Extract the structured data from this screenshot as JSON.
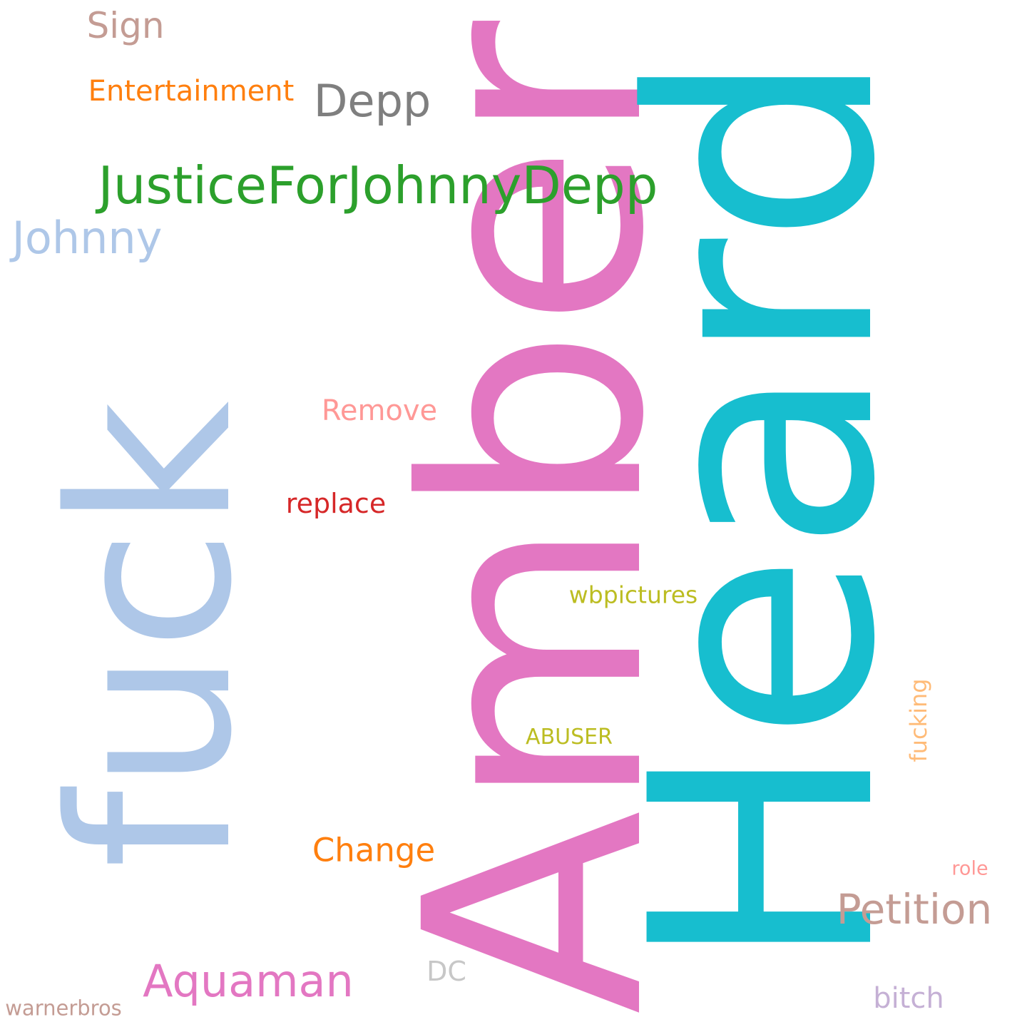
{
  "words": {
    "amber": {
      "text": "Amber",
      "color": "#e377c2"
    },
    "heard": {
      "text": "Heard",
      "color": "#17becf"
    },
    "fuck": {
      "text": "fuck",
      "color": "#aec7e8"
    },
    "justice": {
      "text": "JusticeForJohnnyDepp",
      "color": "#2ca02c"
    },
    "johnny": {
      "text": "Johnny",
      "color": "#aec7e8"
    },
    "depp": {
      "text": "Depp",
      "color": "#7f7f7f"
    },
    "sign": {
      "text": "Sign",
      "color": "#c49c94"
    },
    "entertainment": {
      "text": "Entertainment",
      "color": "#ff7f0e"
    },
    "remove": {
      "text": "Remove",
      "color": "#ff9896"
    },
    "replace": {
      "text": "replace",
      "color": "#d62728"
    },
    "wbpictures": {
      "text": "wbpictures",
      "color": "#bcbd22"
    },
    "abuser": {
      "text": "ABUSER",
      "color": "#bcbd22"
    },
    "fucking": {
      "text": "fucking",
      "color": "#ffbb78"
    },
    "change": {
      "text": "Change",
      "color": "#ff7f0e"
    },
    "role": {
      "text": "role",
      "color": "#ff9896"
    },
    "petition": {
      "text": "Petition",
      "color": "#c49c94"
    },
    "aquaman": {
      "text": "Aquaman",
      "color": "#e377c2"
    },
    "dc": {
      "text": "DC",
      "color": "#c7c7c7"
    },
    "bitch": {
      "text": "bitch",
      "color": "#c5b0d5"
    },
    "warnerbros": {
      "text": "warnerbros",
      "color": "#c49c94"
    }
  }
}
